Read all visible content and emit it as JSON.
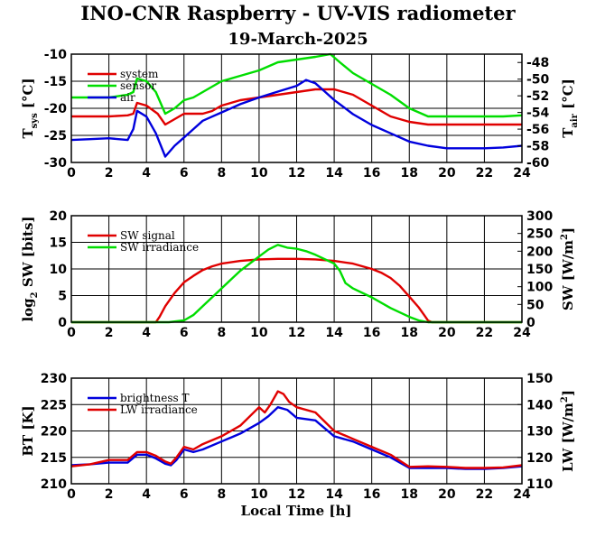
{
  "title": "INO-CNR Raspberry - UV-VIS radiometer",
  "subtitle": "19-March-2025",
  "xlabel": "Local Time [h]",
  "colors": {
    "red": "#e00000",
    "green": "#00dd00",
    "blue": "#0000dd"
  },
  "chart_data": [
    {
      "type": "line",
      "ylabel_left": "T_sys [°C]",
      "ylabel_left_main": "T",
      "ylabel_left_sub": "sys",
      "ylabel_left_unit": " [°C]",
      "ylabel_right": "T_air [°C]",
      "ylabel_right_main": "T",
      "ylabel_right_sub": "air",
      "ylabel_right_unit": " [°C]",
      "xlim": [
        0,
        24
      ],
      "xticks": [
        "0",
        "2",
        "4",
        "6",
        "8",
        "10",
        "12",
        "14",
        "16",
        "18",
        "20",
        "22",
        "24"
      ],
      "ylim_left": [
        -30,
        -10
      ],
      "yticks_left": [
        "-30",
        "-25",
        "-20",
        "-15",
        "-10"
      ],
      "ylim_right": [
        -60,
        -47
      ],
      "yticks_right": [
        "-60",
        "-58",
        "-56",
        "-54",
        "-52",
        "-50",
        "-48"
      ],
      "grid": true,
      "legend": "top-left",
      "series": [
        {
          "name": "system",
          "color": "red",
          "axis": "left",
          "x": [
            0,
            1,
            2,
            3,
            3.3,
            3.5,
            4,
            4.6,
            5,
            5.5,
            6,
            6.5,
            7,
            7.5,
            8,
            9,
            10,
            11,
            12,
            13,
            14,
            14.5,
            15,
            15.5,
            16,
            16.5,
            17,
            17.5,
            18,
            19,
            20,
            21,
            22,
            23,
            24
          ],
          "y": [
            -21.5,
            -21.5,
            -21.5,
            -21.3,
            -21,
            -19,
            -19.5,
            -21,
            -23,
            -22,
            -21,
            -21,
            -21,
            -20.5,
            -19.5,
            -18.5,
            -18,
            -17.5,
            -17,
            -16.5,
            -16.5,
            -17,
            -17.5,
            -18.5,
            -19.5,
            -20.5,
            -21.5,
            -22,
            -22.5,
            -23,
            -23,
            -23,
            -23,
            -23,
            -23
          ]
        },
        {
          "name": "sensor",
          "color": "green",
          "axis": "left",
          "x": [
            0,
            1,
            2,
            3,
            3.3,
            3.5,
            4,
            4.5,
            5,
            5.5,
            6,
            6.5,
            7,
            7.5,
            8,
            9,
            10,
            11,
            12,
            13,
            13.8,
            14.3,
            15,
            16,
            17,
            18,
            19,
            20,
            21,
            22,
            23,
            24
          ],
          "y": [
            -18,
            -18,
            -18,
            -17.5,
            -17,
            -14.5,
            -15,
            -17,
            -21,
            -20,
            -18.5,
            -18,
            -17,
            -16,
            -15,
            -14,
            -13,
            -11.5,
            -11,
            -10.5,
            -10,
            -11.5,
            -13.5,
            -15.5,
            -17.5,
            -20,
            -21.5,
            -21.5,
            -21.5,
            -21.5,
            -21.5,
            -21.3
          ]
        },
        {
          "name": "air",
          "color": "blue",
          "axis": "right",
          "x": [
            0,
            1,
            2,
            3,
            3.3,
            3.5,
            4,
            4.5,
            5,
            5.5,
            6,
            6.5,
            7,
            7.5,
            8,
            9,
            10,
            11,
            12,
            12.5,
            13,
            13.5,
            14,
            15,
            16,
            17,
            18,
            19,
            20,
            21,
            22,
            23,
            24
          ],
          "y": [
            -57.3,
            -57.2,
            -57.1,
            -57.3,
            -56,
            -53.8,
            -54.5,
            -56.5,
            -59.3,
            -58,
            -57,
            -56,
            -55,
            -54.5,
            -54,
            -53,
            -52.2,
            -51.5,
            -50.8,
            -50.1,
            -50.5,
            -51.5,
            -52.5,
            -54.2,
            -55.5,
            -56.5,
            -57.5,
            -58,
            -58.3,
            -58.3,
            -58.3,
            -58.2,
            -58
          ]
        }
      ]
    },
    {
      "type": "line",
      "ylabel_left": "log2 SW [bits]",
      "ylabel_left_main": "log",
      "ylabel_left_sub": "2",
      "ylabel_left_unit": " SW [bits]",
      "ylabel_right": "SW [W/m2]",
      "ylabel_right_main": "SW [W/m",
      "ylabel_right_sup": "2",
      "ylabel_right_unit": "]",
      "xlim": [
        0,
        24
      ],
      "xticks": [
        "0",
        "2",
        "4",
        "6",
        "8",
        "10",
        "12",
        "14",
        "16",
        "18",
        "20",
        "22",
        "24"
      ],
      "ylim_left": [
        0,
        20
      ],
      "yticks_left": [
        "0",
        "5",
        "10",
        "15",
        "20"
      ],
      "ylim_right": [
        0,
        300
      ],
      "yticks_right": [
        "0",
        "50",
        "100",
        "150",
        "200",
        "250",
        "300"
      ],
      "grid": true,
      "legend": "top-left",
      "series": [
        {
          "name": "SW signal",
          "color": "red",
          "axis": "left",
          "x": [
            0,
            4.5,
            4.7,
            5,
            5.5,
            6,
            6.5,
            7,
            7.5,
            8,
            9,
            10,
            11,
            12,
            13,
            14,
            15,
            16,
            16.5,
            17,
            17.5,
            18,
            18.5,
            18.8,
            19,
            19.2,
            24
          ],
          "y": [
            0,
            0,
            1,
            3,
            5.5,
            7.5,
            8.7,
            9.8,
            10.5,
            11,
            11.5,
            11.8,
            11.9,
            11.9,
            11.8,
            11.5,
            11,
            10,
            9.3,
            8.3,
            6.8,
            4.8,
            2.8,
            1.3,
            0.3,
            0,
            0
          ]
        },
        {
          "name": "SW irradiance",
          "color": "green",
          "axis": "right",
          "x": [
            0,
            5.2,
            6,
            6.5,
            7,
            8,
            9,
            10,
            10.5,
            11,
            11.5,
            12,
            12.5,
            13,
            14,
            14.3,
            14.6,
            15,
            16,
            17,
            18,
            18.5,
            19,
            24
          ],
          "y": [
            0,
            0,
            5,
            20,
            45,
            95,
            145,
            185,
            205,
            218,
            210,
            207,
            200,
            190,
            165,
            145,
            110,
            95,
            70,
            40,
            15,
            5,
            0,
            0
          ]
        }
      ]
    },
    {
      "type": "line",
      "ylabel_left": "BT [K]",
      "ylabel_right": "LW [W/m2]",
      "ylabel_right_main": "LW [W/m",
      "ylabel_right_sup": "2",
      "ylabel_right_unit": "]",
      "xlim": [
        0,
        24
      ],
      "xticks": [
        "0",
        "2",
        "4",
        "6",
        "8",
        "10",
        "12",
        "14",
        "16",
        "18",
        "20",
        "22",
        "24"
      ],
      "ylim_left": [
        210,
        230
      ],
      "yticks_left": [
        "210",
        "215",
        "220",
        "225",
        "230"
      ],
      "ylim_right": [
        110,
        150
      ],
      "yticks_right": [
        "110",
        "120",
        "130",
        "140",
        "150"
      ],
      "grid": true,
      "legend": "top-left",
      "series": [
        {
          "name": "brightness T",
          "color": "blue",
          "axis": "left",
          "x": [
            0,
            1,
            2,
            3,
            3.5,
            4,
            4.5,
            5,
            5.3,
            5.6,
            6,
            6.5,
            7,
            8,
            9,
            10,
            10.5,
            11,
            11.5,
            12,
            13,
            14,
            15,
            16,
            17,
            18,
            19,
            20,
            21,
            22,
            23,
            24
          ],
          "y": [
            213.5,
            213.7,
            214,
            214,
            215.5,
            215.5,
            214.8,
            213.8,
            213.5,
            214.5,
            216.5,
            216,
            216.5,
            218,
            219.5,
            221.5,
            222.8,
            224.5,
            224,
            222.5,
            222,
            219,
            218,
            216.5,
            215,
            213,
            213,
            213,
            212.8,
            212.8,
            213,
            213.3
          ]
        },
        {
          "name": "LW irradiance",
          "color": "red",
          "axis": "left",
          "x": [
            0,
            1,
            2,
            3,
            3.5,
            4,
            4.5,
            5,
            5.3,
            5.6,
            6,
            6.5,
            7,
            8,
            9,
            10,
            10.3,
            10.6,
            11,
            11.3,
            11.6,
            12,
            13,
            14,
            15,
            16,
            17,
            18,
            19,
            20,
            21,
            22,
            23,
            24
          ],
          "y": [
            213.3,
            213.7,
            214.5,
            214.5,
            216,
            216,
            215.3,
            214.2,
            213.8,
            215,
            217,
            216.5,
            217.5,
            219,
            221,
            224.5,
            223.5,
            225,
            227.5,
            227,
            225.5,
            224.5,
            223.5,
            220,
            218.5,
            217,
            215.5,
            213.2,
            213.3,
            213.2,
            213,
            213,
            213.1,
            213.5
          ]
        }
      ]
    }
  ]
}
